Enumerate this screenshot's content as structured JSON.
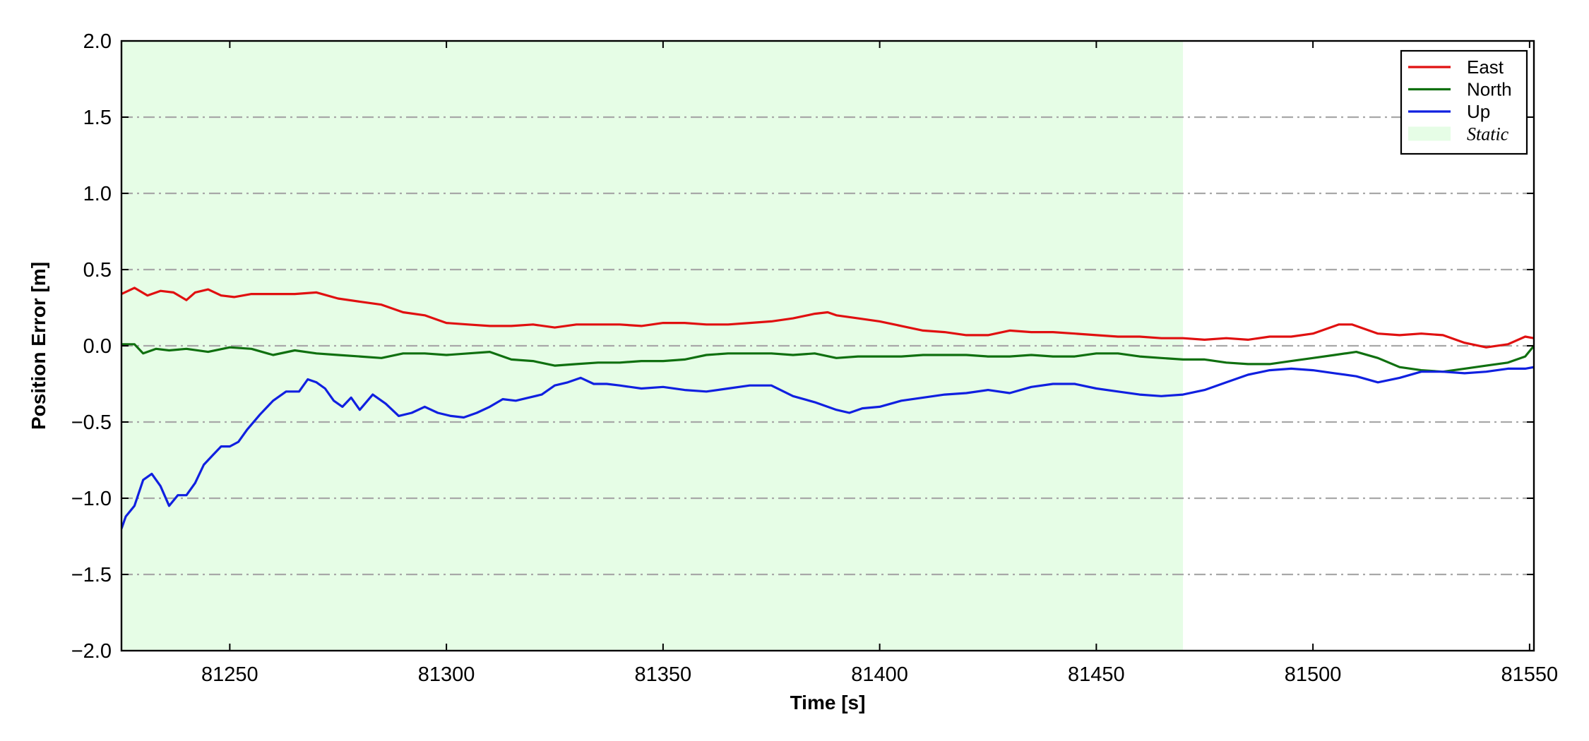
{
  "chart_data": {
    "type": "line",
    "xlabel": "Time [s]",
    "ylabel": "Position Error [m]",
    "xlim": [
      81225,
      81551
    ],
    "ylim": [
      -2.0,
      2.0
    ],
    "x_ticks": [
      81250,
      81300,
      81350,
      81400,
      81450,
      81500,
      81550
    ],
    "y_ticks": [
      -2.0,
      -1.5,
      -1.0,
      -0.5,
      0.0,
      0.5,
      1.0,
      1.5,
      2.0
    ],
    "x_tick_labels": [
      "81250",
      "81300",
      "81350",
      "81400",
      "81450",
      "81500",
      "81550"
    ],
    "y_tick_labels": [
      "−2.0",
      "−1.5",
      "−1.0",
      "−0.5",
      "0.0",
      "0.5",
      "1.0",
      "1.5",
      "2.0"
    ],
    "grid": "horizontal dash-dot",
    "legend_position": "top-right",
    "static_region": {
      "label": "Static",
      "x_start": 81225,
      "x_end": 81470,
      "color": "#e6fde6"
    },
    "series": [
      {
        "name": "East",
        "color": "#e01010",
        "x": [
          81225,
          81228,
          81231,
          81234,
          81237,
          81240,
          81242,
          81245,
          81248,
          81251,
          81255,
          81260,
          81265,
          81270,
          81275,
          81280,
          81285,
          81290,
          81295,
          81300,
          81305,
          81310,
          81315,
          81320,
          81325,
          81330,
          81335,
          81340,
          81345,
          81350,
          81355,
          81360,
          81365,
          81370,
          81375,
          81380,
          81385,
          81388,
          81390,
          81395,
          81400,
          81405,
          81410,
          81415,
          81420,
          81425,
          81430,
          81435,
          81440,
          81445,
          81450,
          81455,
          81460,
          81465,
          81470,
          81475,
          81480,
          81485,
          81490,
          81495,
          81500,
          81503,
          81506,
          81509,
          81512,
          81515,
          81520,
          81525,
          81530,
          81535,
          81540,
          81545,
          81549,
          81551
        ],
        "y": [
          0.34,
          0.38,
          0.33,
          0.36,
          0.35,
          0.3,
          0.35,
          0.37,
          0.33,
          0.32,
          0.34,
          0.34,
          0.34,
          0.35,
          0.31,
          0.29,
          0.27,
          0.22,
          0.2,
          0.15,
          0.14,
          0.13,
          0.13,
          0.14,
          0.12,
          0.14,
          0.14,
          0.14,
          0.13,
          0.15,
          0.15,
          0.14,
          0.14,
          0.15,
          0.16,
          0.18,
          0.21,
          0.22,
          0.2,
          0.18,
          0.16,
          0.13,
          0.1,
          0.09,
          0.07,
          0.07,
          0.1,
          0.09,
          0.09,
          0.08,
          0.07,
          0.06,
          0.06,
          0.05,
          0.05,
          0.04,
          0.05,
          0.04,
          0.06,
          0.06,
          0.08,
          0.11,
          0.14,
          0.14,
          0.11,
          0.08,
          0.07,
          0.08,
          0.07,
          0.02,
          -0.01,
          0.01,
          0.06,
          0.05
        ]
      },
      {
        "name": "North",
        "color": "#107010",
        "x": [
          81225,
          81228,
          81230,
          81233,
          81236,
          81240,
          81245,
          81250,
          81255,
          81260,
          81265,
          81270,
          81275,
          81280,
          81285,
          81290,
          81295,
          81300,
          81305,
          81310,
          81315,
          81320,
          81325,
          81330,
          81335,
          81340,
          81345,
          81350,
          81355,
          81360,
          81365,
          81370,
          81375,
          81380,
          81385,
          81390,
          81395,
          81400,
          81405,
          81410,
          81415,
          81420,
          81425,
          81430,
          81435,
          81440,
          81445,
          81450,
          81455,
          81460,
          81465,
          81470,
          81475,
          81480,
          81485,
          81490,
          81495,
          81500,
          81505,
          81510,
          81515,
          81520,
          81525,
          81530,
          81535,
          81540,
          81545,
          81549,
          81551
        ],
        "y": [
          0.01,
          0.01,
          -0.05,
          -0.02,
          -0.03,
          -0.02,
          -0.04,
          -0.01,
          -0.02,
          -0.06,
          -0.03,
          -0.05,
          -0.06,
          -0.07,
          -0.08,
          -0.05,
          -0.05,
          -0.06,
          -0.05,
          -0.04,
          -0.09,
          -0.1,
          -0.13,
          -0.12,
          -0.11,
          -0.11,
          -0.1,
          -0.1,
          -0.09,
          -0.06,
          -0.05,
          -0.05,
          -0.05,
          -0.06,
          -0.05,
          -0.08,
          -0.07,
          -0.07,
          -0.07,
          -0.06,
          -0.06,
          -0.06,
          -0.07,
          -0.07,
          -0.06,
          -0.07,
          -0.07,
          -0.05,
          -0.05,
          -0.07,
          -0.08,
          -0.09,
          -0.09,
          -0.11,
          -0.12,
          -0.12,
          -0.1,
          -0.08,
          -0.06,
          -0.04,
          -0.08,
          -0.14,
          -0.16,
          -0.17,
          -0.15,
          -0.13,
          -0.11,
          -0.07,
          0.0
        ]
      },
      {
        "name": "Up",
        "color": "#1020e0",
        "x": [
          81225,
          81226,
          81228,
          81230,
          81232,
          81234,
          81236,
          81238,
          81240,
          81242,
          81244,
          81246,
          81248,
          81250,
          81252,
          81254,
          81257,
          81260,
          81263,
          81266,
          81268,
          81270,
          81272,
          81274,
          81276,
          81278,
          81280,
          81283,
          81286,
          81289,
          81292,
          81295,
          81298,
          81301,
          81304,
          81307,
          81310,
          81313,
          81316,
          81319,
          81322,
          81325,
          81328,
          81331,
          81334,
          81337,
          81340,
          81345,
          81350,
          81355,
          81360,
          81365,
          81370,
          81375,
          81380,
          81385,
          81390,
          81393,
          81396,
          81400,
          81405,
          81410,
          81415,
          81420,
          81425,
          81430,
          81435,
          81440,
          81445,
          81450,
          81455,
          81460,
          81465,
          81470,
          81475,
          81480,
          81485,
          81490,
          81495,
          81500,
          81505,
          81510,
          81515,
          81520,
          81525,
          81530,
          81535,
          81540,
          81545,
          81549,
          81551
        ],
        "y": [
          -1.2,
          -1.12,
          -1.05,
          -0.88,
          -0.84,
          -0.92,
          -1.05,
          -0.98,
          -0.98,
          -0.9,
          -0.78,
          -0.72,
          -0.66,
          -0.66,
          -0.63,
          -0.55,
          -0.45,
          -0.36,
          -0.3,
          -0.3,
          -0.22,
          -0.24,
          -0.28,
          -0.36,
          -0.4,
          -0.34,
          -0.42,
          -0.32,
          -0.38,
          -0.46,
          -0.44,
          -0.4,
          -0.44,
          -0.46,
          -0.47,
          -0.44,
          -0.4,
          -0.35,
          -0.36,
          -0.34,
          -0.32,
          -0.26,
          -0.24,
          -0.21,
          -0.25,
          -0.25,
          -0.26,
          -0.28,
          -0.27,
          -0.29,
          -0.3,
          -0.28,
          -0.26,
          -0.26,
          -0.33,
          -0.37,
          -0.42,
          -0.44,
          -0.41,
          -0.4,
          -0.36,
          -0.34,
          -0.32,
          -0.31,
          -0.29,
          -0.31,
          -0.27,
          -0.25,
          -0.25,
          -0.28,
          -0.3,
          -0.32,
          -0.33,
          -0.32,
          -0.29,
          -0.24,
          -0.19,
          -0.16,
          -0.15,
          -0.16,
          -0.18,
          -0.2,
          -0.24,
          -0.21,
          -0.17,
          -0.17,
          -0.18,
          -0.17,
          -0.15,
          -0.15,
          -0.14
        ]
      }
    ],
    "legend": [
      {
        "label": "East",
        "kind": "line",
        "color": "#e01010"
      },
      {
        "label": "North",
        "kind": "line",
        "color": "#107010"
      },
      {
        "label": "Up",
        "kind": "line",
        "color": "#1020e0"
      },
      {
        "label": "Static",
        "kind": "patch",
        "color": "#e6fde6"
      }
    ]
  }
}
